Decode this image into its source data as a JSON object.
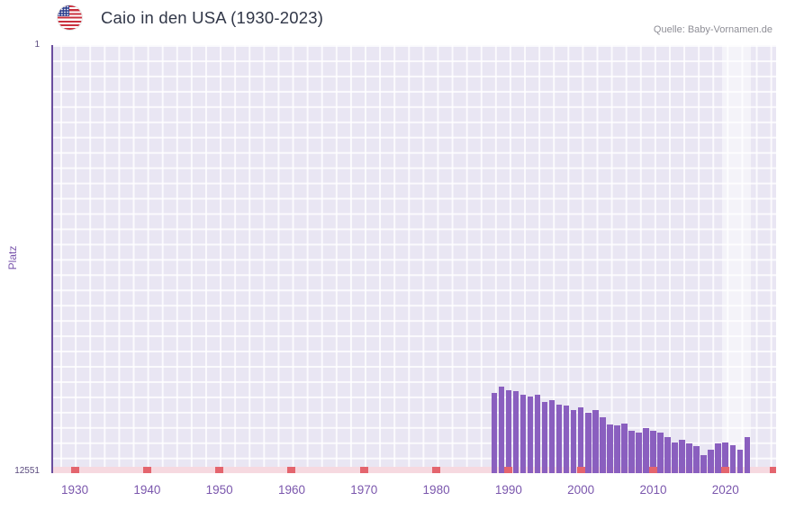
{
  "header": {
    "title": "Caio in den USA (1930-2023)",
    "source": "Quelle: Baby-Vornamen.de",
    "flag_icon": "us-flag-icon"
  },
  "chart_data": {
    "type": "bar",
    "title": "Caio in den USA (1930-2023)",
    "xlabel": "",
    "ylabel": "Platz",
    "grid": true,
    "legend": "none",
    "y_axis": {
      "top_label": "1",
      "bottom_label": "12551",
      "min": 1,
      "max": 12551,
      "inverted": true
    },
    "x_domain": [
      1927,
      2027
    ],
    "x_ticks": [
      1930,
      1940,
      1950,
      1960,
      1970,
      1980,
      1990,
      2000,
      2010,
      2020
    ],
    "years": [
      1988,
      1989,
      1990,
      1991,
      1992,
      1993,
      1994,
      1995,
      1996,
      1997,
      1998,
      1999,
      2000,
      2001,
      2002,
      2003,
      2004,
      2005,
      2006,
      2007,
      2008,
      2009,
      2010,
      2011,
      2012,
      2013,
      2014,
      2015,
      2016,
      2017,
      2018,
      2019,
      2020,
      2021,
      2022,
      2023
    ],
    "values": [
      10200,
      10020,
      10110,
      10140,
      10260,
      10310,
      10240,
      10450,
      10420,
      10530,
      10580,
      10710,
      10630,
      10790,
      10700,
      10900,
      11110,
      11160,
      11100,
      11320,
      11370,
      11230,
      11320,
      11370,
      11500,
      11640,
      11580,
      11690,
      11770,
      12030,
      11850,
      11690,
      11640,
      11720,
      11850,
      11500
    ],
    "highlight_region": {
      "from_year": 2019.5,
      "to_year": 2023.5
    },
    "colors": {
      "bar": "#8a5fbf",
      "plot_bg": "#e9e6f3",
      "grid_line": "#ffffff",
      "axis_line": "#6a4d9e",
      "axis_strip": "#f6d9e0",
      "axis_tick": "#e4656e",
      "tick_label": "#7b57ad",
      "title_text": "#313748",
      "source_text": "#8e8e96"
    }
  }
}
